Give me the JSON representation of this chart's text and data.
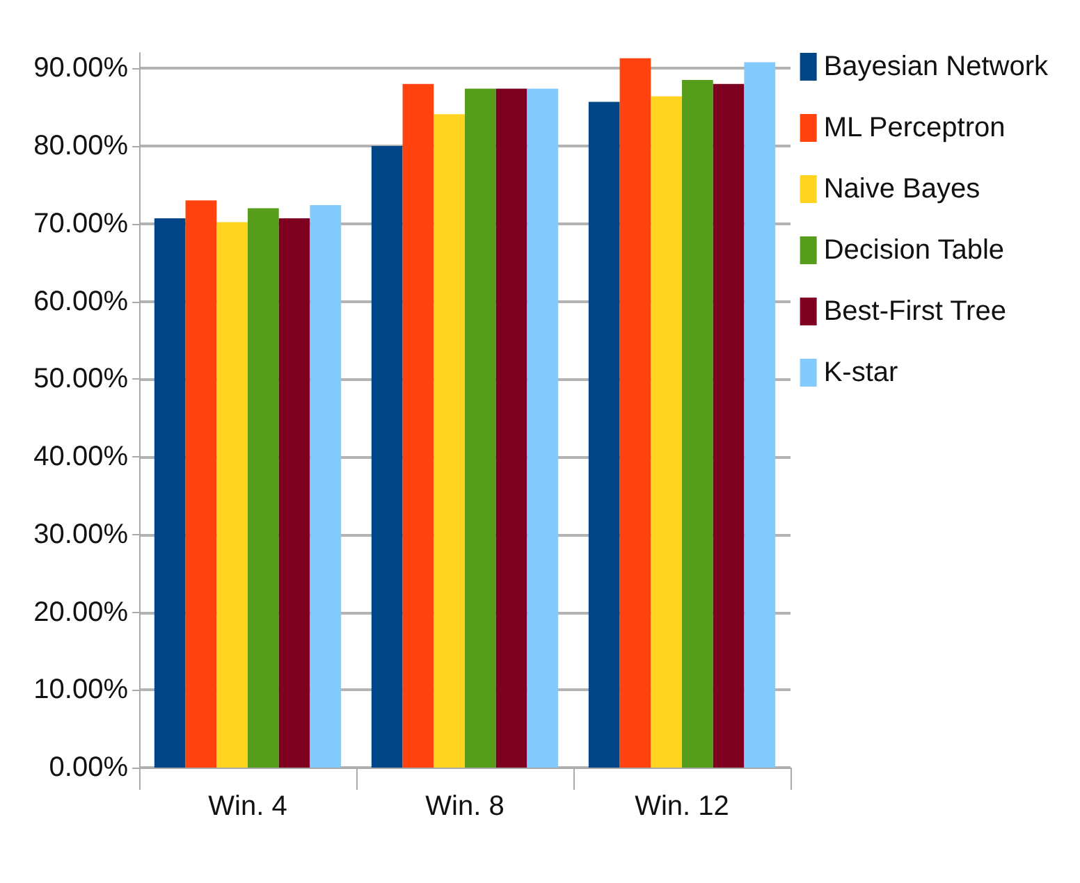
{
  "chart_data": {
    "type": "bar",
    "categories": [
      "Win. 4",
      "Win. 8",
      "Win. 12"
    ],
    "series": [
      {
        "name": "Bayesian Network",
        "color": "#004586",
        "values": [
          70.7,
          80.0,
          85.7
        ]
      },
      {
        "name": "ML Perceptron",
        "color": "#ff420e",
        "values": [
          73.0,
          88.0,
          91.3
        ]
      },
      {
        "name": "Naive Bayes",
        "color": "#ffd320",
        "values": [
          70.2,
          84.1,
          86.4
        ]
      },
      {
        "name": "Decision Table",
        "color": "#579d1c",
        "values": [
          72.0,
          87.4,
          88.5
        ]
      },
      {
        "name": "Best-First Tree",
        "color": "#7e0021",
        "values": [
          70.7,
          87.4,
          88.0
        ]
      },
      {
        "name": "K-star",
        "color": "#83caff",
        "values": [
          72.4,
          87.4,
          90.8
        ]
      }
    ],
    "ylim": [
      0,
      92
    ],
    "yticks": [
      {
        "value": 0,
        "label": "0.00%"
      },
      {
        "value": 10,
        "label": "10.00%"
      },
      {
        "value": 20,
        "label": "20.00%"
      },
      {
        "value": 30,
        "label": "30.00%"
      },
      {
        "value": 40,
        "label": "40.00%"
      },
      {
        "value": 50,
        "label": "50.00%"
      },
      {
        "value": 60,
        "label": "60.00%"
      },
      {
        "value": 70,
        "label": "70.00%"
      },
      {
        "value": 80,
        "label": "80.00%"
      },
      {
        "value": 90,
        "label": "90.00%"
      }
    ],
    "grid": "y",
    "legend": "right"
  }
}
